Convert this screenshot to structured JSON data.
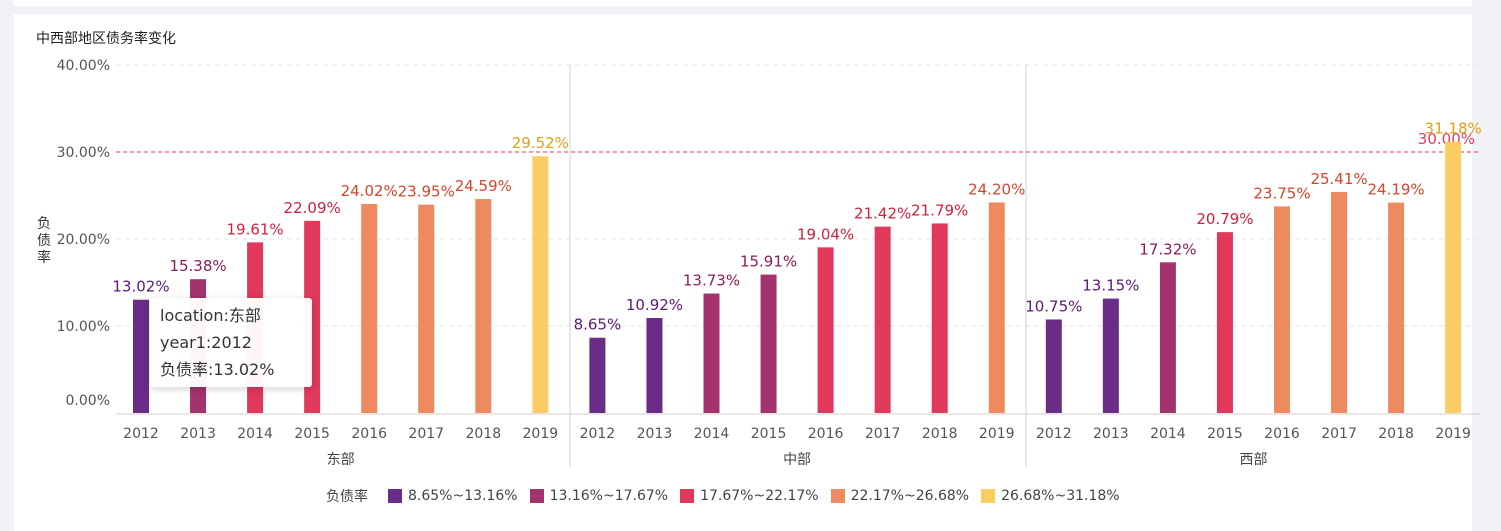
{
  "title": "中西部地区债务率变化",
  "chart_data": {
    "type": "bar",
    "ylabel": "负债率",
    "ylim": [
      0,
      40
    ],
    "yticks": [
      "0.00%",
      "10.00%",
      "20.00%",
      "30.00%",
      "40.00%"
    ],
    "reference_line": {
      "value": 30,
      "label": "30.00%",
      "color": "#e23c5c"
    },
    "groups": [
      {
        "name": "东部",
        "years": [
          "2012",
          "2013",
          "2014",
          "2015",
          "2016",
          "2017",
          "2018",
          "2019"
        ],
        "values": [
          13.02,
          15.38,
          19.61,
          22.09,
          24.02,
          23.95,
          24.59,
          29.52
        ],
        "labels": [
          "13.02%",
          "15.38%",
          "19.61%",
          "22.09%",
          "24.02%",
          "23.95%",
          "24.59%",
          "29.52%"
        ]
      },
      {
        "name": "中部",
        "years": [
          "2012",
          "2013",
          "2014",
          "2015",
          "2016",
          "2017",
          "2018",
          "2019"
        ],
        "values": [
          8.65,
          10.92,
          13.73,
          15.91,
          19.04,
          21.42,
          21.79,
          24.2
        ],
        "labels": [
          "8.65%",
          "10.92%",
          "13.73%",
          "15.91%",
          "19.04%",
          "21.42%",
          "21.79%",
          "24.20%"
        ]
      },
      {
        "name": "西部",
        "years": [
          "2012",
          "2013",
          "2014",
          "2015",
          "2016",
          "2017",
          "2018",
          "2019"
        ],
        "values": [
          10.75,
          13.15,
          17.32,
          20.79,
          23.75,
          25.41,
          24.19,
          31.18
        ],
        "labels": [
          "10.75%",
          "13.15%",
          "17.32%",
          "20.79%",
          "23.75%",
          "25.41%",
          "24.19%",
          "31.18%"
        ]
      }
    ],
    "legend": {
      "title": "负债率",
      "position": "bottom",
      "items": [
        {
          "label": "8.65%~13.16%",
          "color": "#6a2c84",
          "max": 13.16
        },
        {
          "label": "13.16%~17.67%",
          "color": "#a2336d",
          "max": 17.67
        },
        {
          "label": "17.67%~22.17%",
          "color": "#e0395c",
          "max": 22.17
        },
        {
          "label": "22.17%~26.68%",
          "color": "#ee8a60",
          "max": 26.68
        },
        {
          "label": "26.68%~31.18%",
          "color": "#fdcd65",
          "max": 31.18
        }
      ]
    },
    "label_colors": [
      "#5c1a75",
      "#8a1d5a",
      "#d21f3c",
      "#d6452a",
      "#e0a012"
    ],
    "grid": true
  },
  "tooltip": {
    "line1": "location:东部",
    "line2": "year1:2012",
    "line3": "负债率:13.02%"
  }
}
